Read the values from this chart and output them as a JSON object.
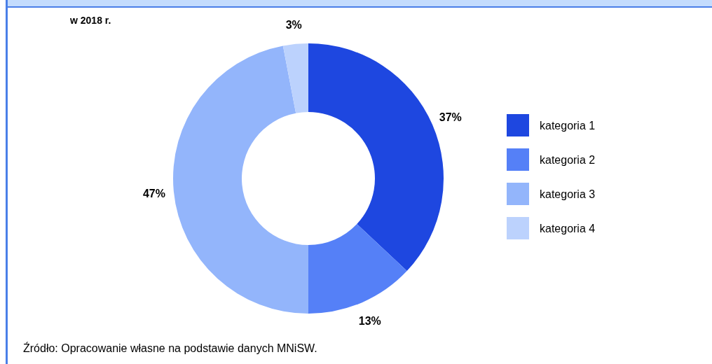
{
  "chart_data": {
    "type": "donut",
    "title": "w 2018 r.",
    "categories": [
      "kategoria 1",
      "kategoria 2",
      "kategoria 3",
      "kategoria 4"
    ],
    "values": [
      37,
      13,
      47,
      3
    ],
    "colors": [
      "#1e47e0",
      "#5580f7",
      "#93b5fb",
      "#bcd2fd"
    ],
    "legend": "right",
    "value_labels": [
      "37%",
      "13%",
      "47%",
      "3%"
    ],
    "annotations": [
      "Źródło: Opracowanie własne na podstawie danych MNiSW."
    ]
  }
}
